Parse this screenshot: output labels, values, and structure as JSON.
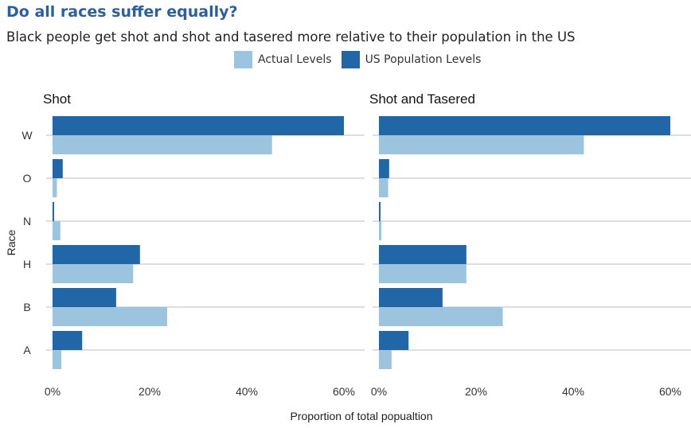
{
  "title": "Do all races suffer equally?",
  "subtitle": "Black people get shot and shot and tasered more relative to their population in the US",
  "colors": {
    "actual": "#9cc4de",
    "population": "#2166a7",
    "grid": "#bdbdbd",
    "title": "#2c5fa0"
  },
  "chart_data": {
    "type": "bar",
    "orientation": "horizontal",
    "title": "Do all races suffer equally?",
    "subtitle": "Black people get shot and shot and tasered more relative to their population in the US",
    "xlabel": "Proportion of total popualtion",
    "ylabel": "Race",
    "xlim": [
      0,
      0.6
    ],
    "xticks": [
      "0%",
      "20%",
      "40%",
      "60%"
    ],
    "categories": [
      "W",
      "O",
      "N",
      "H",
      "B",
      "A"
    ],
    "legend": {
      "position": "top",
      "entries": [
        "Actual Levels",
        "US Population Levels"
      ]
    },
    "panels": [
      {
        "title": "Shot",
        "series": [
          {
            "name": "US Population Levels",
            "values": [
              0.6,
              0.021,
              0.002,
              0.18,
              0.131,
              0.061
            ]
          },
          {
            "name": "Actual Levels",
            "values": [
              0.452,
              0.009,
              0.016,
              0.166,
              0.236,
              0.018
            ]
          }
        ]
      },
      {
        "title": "Shot and Tasered",
        "series": [
          {
            "name": "US Population Levels",
            "values": [
              0.6,
              0.021,
              0.002,
              0.18,
              0.131,
              0.061
            ]
          },
          {
            "name": "Actual Levels",
            "values": [
              0.422,
              0.019,
              0.005,
              0.18,
              0.255,
              0.026
            ]
          }
        ]
      }
    ]
  }
}
